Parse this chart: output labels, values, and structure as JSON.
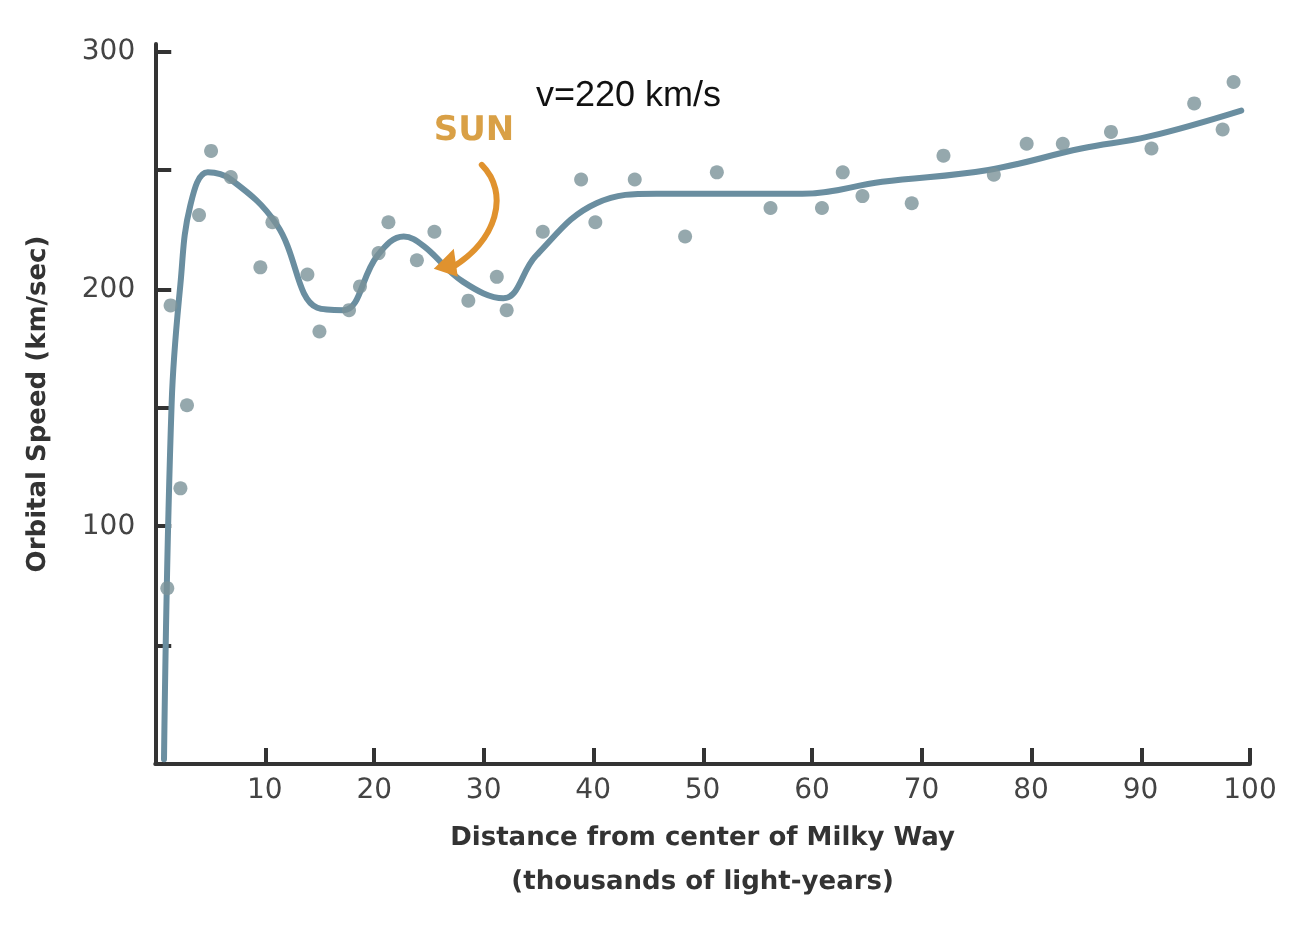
{
  "chart_data": {
    "type": "scatter",
    "xlabel": "Distance from center of Milky Way\n(thousands of light-years)",
    "ylabel": "Orbital Speed (km/sec)",
    "annotations": [
      {
        "text": "SUN",
        "x": 28,
        "y": 205
      },
      "v=220 km/s"
    ],
    "xlim": [
      0,
      100
    ],
    "ylim": [
      0,
      303
    ],
    "xticks": [
      10,
      20,
      30,
      40,
      50,
      60,
      70,
      80,
      90,
      100
    ],
    "yticks": [
      {
        "value": 50,
        "label": null
      },
      100,
      {
        "value": 150,
        "label": null
      },
      200,
      {
        "value": 250,
        "label": null
      },
      300
    ],
    "grid": false,
    "series": [
      {
        "color": "#7a9299",
        "marker": "circle",
        "x": [
          1.1,
          1.4,
          2.3,
          2.9,
          4.0,
          5.1,
          6.9,
          9.6,
          10.7,
          13.9,
          15.0,
          17.7,
          18.7,
          20.4,
          21.3,
          23.9,
          25.5,
          28.6,
          31.2,
          32.1,
          35.4,
          38.9,
          40.2,
          43.8,
          48.4,
          51.3,
          56.2,
          60.9,
          62.8,
          64.6,
          69.1,
          72.0,
          76.6,
          79.6,
          82.9,
          87.3,
          91.0,
          94.9,
          97.5,
          98.5
        ],
        "values": [
          74,
          193,
          116,
          151,
          231,
          258,
          247,
          209,
          228,
          206,
          182,
          191,
          201,
          215,
          228,
          212,
          224,
          195,
          205,
          191,
          224,
          246,
          228,
          246,
          222,
          249,
          234,
          234,
          249,
          239,
          236,
          256,
          248,
          261,
          261,
          266,
          259,
          278,
          267,
          287
        ]
      },
      {
        "type": "line",
        "color": "#6a8ea0",
        "marker": "none",
        "line_style": "solid",
        "x": [
          0.8,
          1.5,
          2.3,
          3.2,
          4.8,
          6.9,
          11.1,
          14.8,
          17.2,
          20.3,
          22.7,
          24.5,
          28.1,
          31.8,
          34.8,
          40.3,
          45.8,
          48.2,
          59.1,
          66.4,
          76.1,
          84.6,
          90.7,
          99.2
        ],
        "values": [
          2,
          152,
          202,
          235,
          249,
          246,
          227,
          192,
          191,
          214,
          222,
          218,
          203,
          196,
          214,
          236,
          240,
          240,
          240,
          245,
          250,
          259,
          264,
          275
        ]
      }
    ]
  }
}
